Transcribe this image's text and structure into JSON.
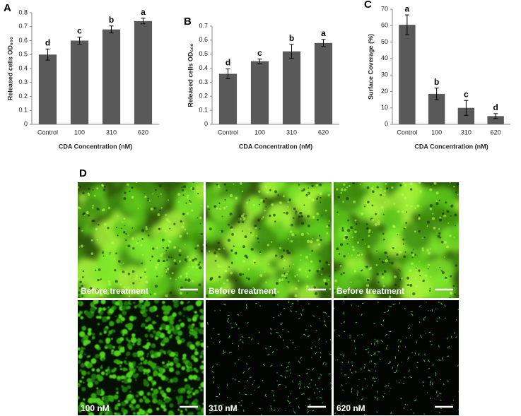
{
  "chart_data": [
    {
      "type": "bar",
      "panel_label": "A",
      "categories": [
        "Control",
        "100",
        "310",
        "620"
      ],
      "values": [
        0.5,
        0.6,
        0.68,
        0.74
      ],
      "errors": [
        0.04,
        0.025,
        0.025,
        0.02
      ],
      "annotations": [
        "d",
        "c",
        "b",
        "a"
      ],
      "color": "#595959",
      "ylim": [
        0,
        0.8
      ],
      "yticks": [
        0,
        0.1,
        0.2,
        0.3,
        0.4,
        0.5,
        0.6,
        0.7,
        0.8
      ],
      "y_label": "Released cells OD₆₀₀",
      "x_label": "CDA Concentration (nM)"
    },
    {
      "type": "bar",
      "panel_label": "B",
      "categories": [
        "Control",
        "100",
        "310",
        "620"
      ],
      "values": [
        0.36,
        0.45,
        0.52,
        0.58
      ],
      "errors": [
        0.035,
        0.015,
        0.05,
        0.025
      ],
      "annotations": [
        "d",
        "c",
        "b",
        "a"
      ],
      "color": "#595959",
      "ylim": [
        0,
        0.7
      ],
      "yticks": [
        0,
        0.1,
        0.2,
        0.3,
        0.4,
        0.5,
        0.6,
        0.7
      ],
      "y_label": "Released cells OD₆₀₀",
      "x_label": "CDA Concentration (nM)"
    },
    {
      "type": "bar",
      "panel_label": "C",
      "categories": [
        "Control",
        "100",
        "310",
        "620"
      ],
      "values": [
        60.5,
        18.5,
        10,
        5
      ],
      "errors": [
        6,
        3.5,
        4.5,
        1.5
      ],
      "annotations": [
        "a",
        "b",
        "c",
        "d"
      ],
      "color": "#595959",
      "ylim": [
        0,
        70
      ],
      "yticks": [
        0,
        10,
        20,
        30,
        40,
        50,
        60,
        70
      ],
      "y_label": "Surface Coverage (%)",
      "x_label": "CDA Concentration (nM)"
    }
  ],
  "panel_d": {
    "panel_label": "D",
    "captions": [
      "Before treatment",
      "Before treatment",
      "Before treatment",
      "100 nM",
      "310 nM",
      "620 nM"
    ]
  }
}
